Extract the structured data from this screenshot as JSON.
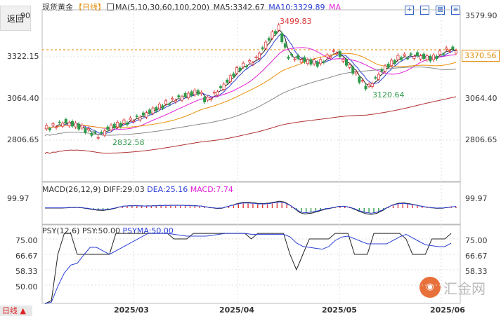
{
  "toolbar": {
    "back_label": "返回"
  },
  "legend_main": {
    "symbol": "现货黄金",
    "period": "【日线】",
    "ma_list": "MA(5,10,30,60,100,200)",
    "ma5": "MA5:3342.67",
    "ma10": "MA10:3329.89",
    "ma_tail": "MA"
  },
  "legend_macd": {
    "name": "MACD(26,12,9)",
    "diff": "DIFF:29.03",
    "dea": "DEA:25.16",
    "macd": "MACD:7.74"
  },
  "legend_psy": {
    "name": "PSY(12,6)",
    "psy": "PSY:50.00",
    "psyma": "PSYMA:50.00"
  },
  "price_axis": {
    "top": "90",
    "labels": [
      "3322.15",
      "3064.40",
      "2806.65"
    ],
    "right_labels": [
      "3579.90",
      "3064.40",
      "2806.65"
    ],
    "current": "3370.56"
  },
  "macd_axis": {
    "label": "99.97"
  },
  "psy_axis": {
    "labels": [
      "75.00",
      "66.67",
      "58.33",
      "50.00"
    ]
  },
  "annotations": {
    "high": "3499.83",
    "low1": "2832.58",
    "low2": "3120.64"
  },
  "time_axis": [
    "2025/03",
    "2025/04",
    "2025/05",
    "2025/06"
  ],
  "timeframe": "日线 ▲",
  "watermark": {
    "glyph": "◉",
    "text": "汇金网"
  },
  "colors": {
    "up": "#d93a3a",
    "down": "#2f9a4a",
    "ma5": "#222222",
    "ma10": "#2b3fd6",
    "ma30": "#e21fd6",
    "ma60": "#e8900a",
    "ma100": "#888888",
    "ma200": "#b03030"
  }
}
